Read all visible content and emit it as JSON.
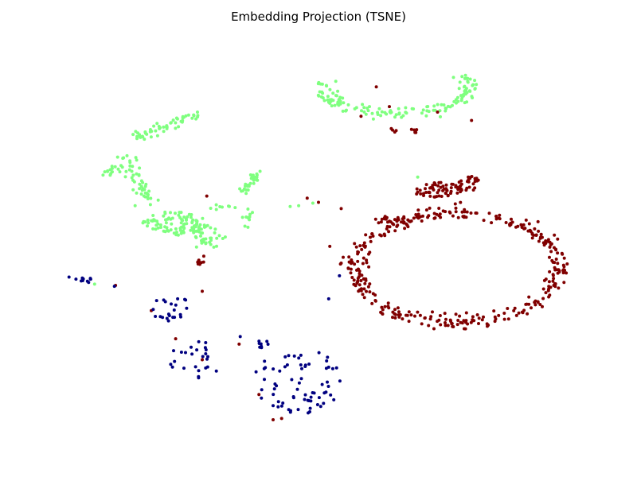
{
  "chart_data": {
    "type": "scatter",
    "title": "Embedding Projection (TSNE)",
    "xlabel": "",
    "ylabel": "",
    "xlim": [
      0,
      100
    ],
    "ylim": [
      0,
      100
    ],
    "axes_visible": false,
    "grid": false,
    "legend": "none",
    "series": [
      {
        "color": "#7fff7f",
        "clusters": [
          {
            "kind": "arc",
            "cx": 63.5,
            "cy": 86.5,
            "rx": 13.0,
            "ry": 6.0,
            "a0": 160,
            "a1": 380,
            "n": 150,
            "jitter": 0.8,
            "seed": 11
          },
          {
            "kind": "line",
            "x0": 18,
            "y0": 74.5,
            "x1": 29,
            "y1": 80.5,
            "n": 55,
            "jitter": 0.7,
            "seed": 12
          },
          {
            "kind": "line",
            "x0": 16,
            "y0": 69.5,
            "x1": 20,
            "y1": 58.5,
            "n": 45,
            "jitter": 0.9,
            "seed": 13
          },
          {
            "kind": "line",
            "x0": 12.5,
            "y0": 65.5,
            "x1": 16,
            "y1": 70,
            "n": 18,
            "jitter": 0.6,
            "seed": 14
          },
          {
            "kind": "blob",
            "cx": 24.5,
            "cy": 54,
            "rx": 5.5,
            "ry": 3.0,
            "n": 90,
            "seed": 15
          },
          {
            "kind": "line",
            "x0": 29,
            "y0": 52.5,
            "x1": 32,
            "y1": 49,
            "n": 40,
            "jitter": 1.2,
            "seed": 16
          },
          {
            "kind": "line",
            "x0": 36.5,
            "y0": 61,
            "x1": 39.5,
            "y1": 66.5,
            "n": 30,
            "jitter": 0.5,
            "seed": 17
          },
          {
            "kind": "blob",
            "cx": 37.5,
            "cy": 55,
            "rx": 1.2,
            "ry": 2.5,
            "n": 10,
            "seed": 18
          },
          {
            "kind": "line",
            "x0": 30,
            "y0": 58,
            "x1": 36,
            "y1": 58,
            "n": 8,
            "jitter": 0.3,
            "seed": 19
          },
          {
            "kind": "points",
            "pts": [
              [
                45,
                58
              ],
              [
                46.5,
                58.2
              ],
              [
                49,
                58.8
              ],
              [
                10.5,
                39.5
              ],
              [
                67.5,
                65.0
              ]
            ]
          }
        ]
      },
      {
        "color": "#800000",
        "clusters": [
          {
            "kind": "arc",
            "cx": 74.5,
            "cy": 43.5,
            "rx": 18.0,
            "ry": 13.0,
            "a0": 0,
            "a1": 360,
            "n": 360,
            "jitter": 0.9,
            "seed": 21
          },
          {
            "kind": "blob",
            "cx": 71,
            "cy": 62,
            "rx": 4.5,
            "ry": 1.8,
            "n": 60,
            "seed": 22
          },
          {
            "kind": "blob",
            "cx": 76.5,
            "cy": 63.5,
            "rx": 2.2,
            "ry": 1.8,
            "n": 25,
            "seed": 23
          },
          {
            "kind": "line",
            "x0": 61,
            "y0": 55,
            "x1": 66,
            "y1": 54,
            "n": 20,
            "jitter": 0.6,
            "seed": 24
          },
          {
            "kind": "line",
            "x0": 67,
            "y0": 76.5,
            "x1": 67,
            "y1": 74.5,
            "n": 6,
            "jitter": 0.3,
            "seed": 25
          },
          {
            "kind": "line",
            "x0": 63,
            "y0": 76.5,
            "x1": 63.8,
            "y1": 75.5,
            "n": 4,
            "jitter": 0.2,
            "seed": 26
          },
          {
            "kind": "line",
            "x0": 29,
            "y0": 44.5,
            "x1": 30,
            "y1": 46,
            "n": 10,
            "jitter": 0.4,
            "seed": 27
          },
          {
            "kind": "points",
            "pts": [
              [
                57.5,
                79.5
              ],
              [
                62.5,
                81.8
              ],
              [
                71,
                80.5
              ],
              [
                77,
                78.5
              ],
              [
                48,
                60
              ],
              [
                50,
                59
              ],
              [
                54,
                57.5
              ],
              [
                52,
                48.5
              ],
              [
                30.3,
                60.5
              ],
              [
                14.2,
                39.2
              ],
              [
                20.5,
                33.2
              ],
              [
                24.8,
                26.5
              ],
              [
                29.5,
                37.8
              ],
              [
                36,
                25.2
              ],
              [
                29.5,
                21.5
              ],
              [
                39.5,
                13.2
              ],
              [
                42,
                7.2
              ],
              [
                43.5,
                7.5
              ],
              [
                54,
                44.5
              ],
              [
                60.2,
                86.5
              ]
            ]
          }
        ]
      },
      {
        "color": "#000080",
        "clusters": [
          {
            "kind": "blob",
            "cx": 8.5,
            "cy": 40.5,
            "rx": 1.5,
            "ry": 0.8,
            "n": 10,
            "seed": 31
          },
          {
            "kind": "blob",
            "cx": 24,
            "cy": 33.5,
            "rx": 4.0,
            "ry": 3.0,
            "n": 22,
            "seed": 32
          },
          {
            "kind": "blob",
            "cx": 28.5,
            "cy": 21.5,
            "rx": 5.0,
            "ry": 4.5,
            "n": 25,
            "seed": 33
          },
          {
            "kind": "blob",
            "cx": 39.5,
            "cy": 25.2,
            "rx": 1.8,
            "ry": 1.2,
            "n": 8,
            "seed": 34
          },
          {
            "kind": "blob",
            "cx": 46.5,
            "cy": 16.5,
            "rx": 8.0,
            "ry": 8.0,
            "n": 70,
            "seed": 35
          },
          {
            "kind": "points",
            "pts": [
              [
                6,
                41.2
              ],
              [
                14,
                39
              ],
              [
                51.8,
                36
              ],
              [
                53.7,
                41.5
              ],
              [
                36.2,
                27
              ]
            ]
          }
        ]
      }
    ]
  }
}
